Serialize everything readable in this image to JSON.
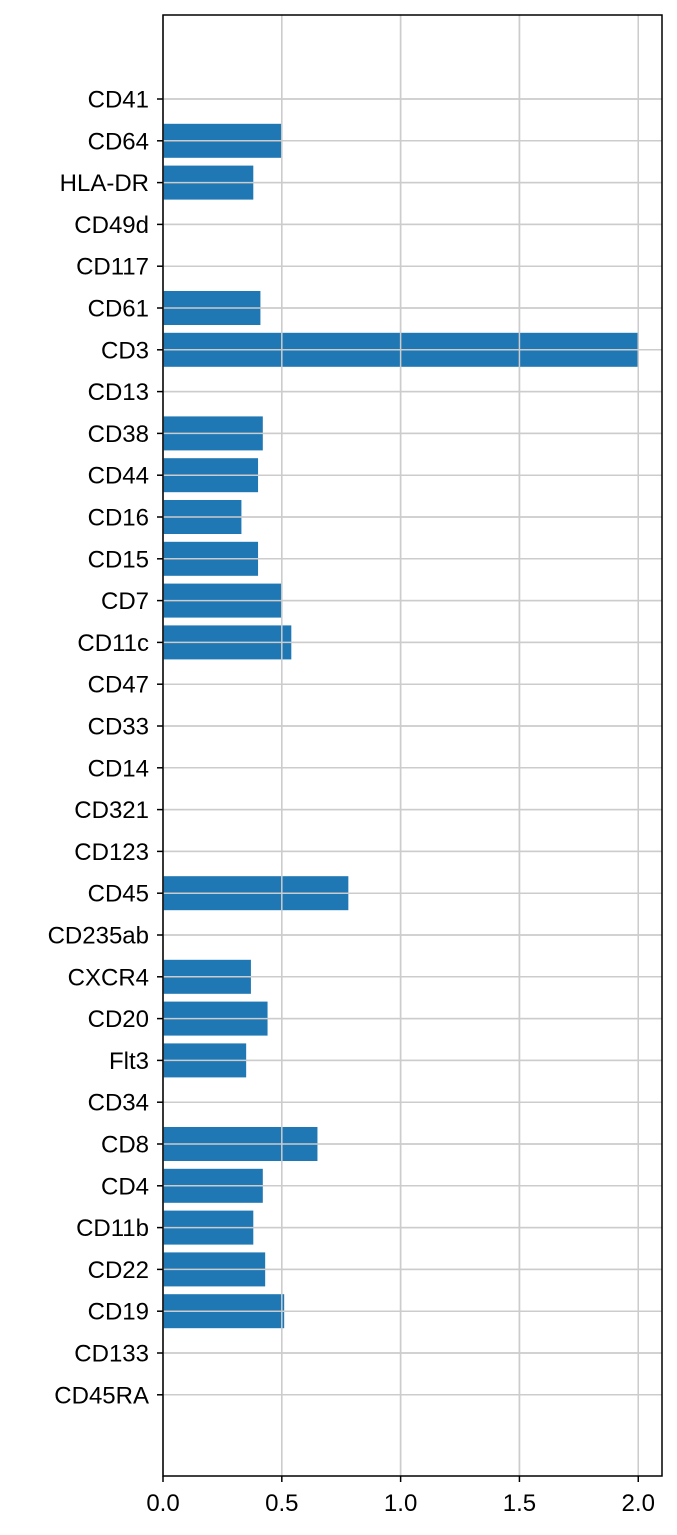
{
  "chart_data": {
    "type": "bar",
    "orientation": "horizontal",
    "categories": [
      "CD41",
      "CD64",
      "HLA-DR",
      "CD49d",
      "CD117",
      "CD61",
      "CD3",
      "CD13",
      "CD38",
      "CD44",
      "CD16",
      "CD15",
      "CD7",
      "CD11c",
      "CD47",
      "CD33",
      "CD14",
      "CD321",
      "CD123",
      "CD45",
      "CD235ab",
      "CXCR4",
      "CD20",
      "Flt3",
      "CD34",
      "CD8",
      "CD4",
      "CD11b",
      "CD22",
      "CD19",
      "CD133",
      "CD45RA"
    ],
    "values": [
      0,
      0.5,
      0.38,
      0,
      0,
      0.41,
      2.0,
      0,
      0.42,
      0.4,
      0.33,
      0.4,
      0.5,
      0.54,
      0,
      0,
      0,
      0,
      0,
      0.78,
      0,
      0.37,
      0.44,
      0.35,
      0,
      0.65,
      0.42,
      0.38,
      0.43,
      0.51,
      0,
      0
    ],
    "xticks": [
      "0.0",
      "0.5",
      "1.0",
      "1.5",
      "2.0"
    ],
    "xlim": [
      0,
      2.1
    ],
    "grid": true,
    "bar_color": "#1f77b4",
    "grid_color": "#cccccc"
  }
}
